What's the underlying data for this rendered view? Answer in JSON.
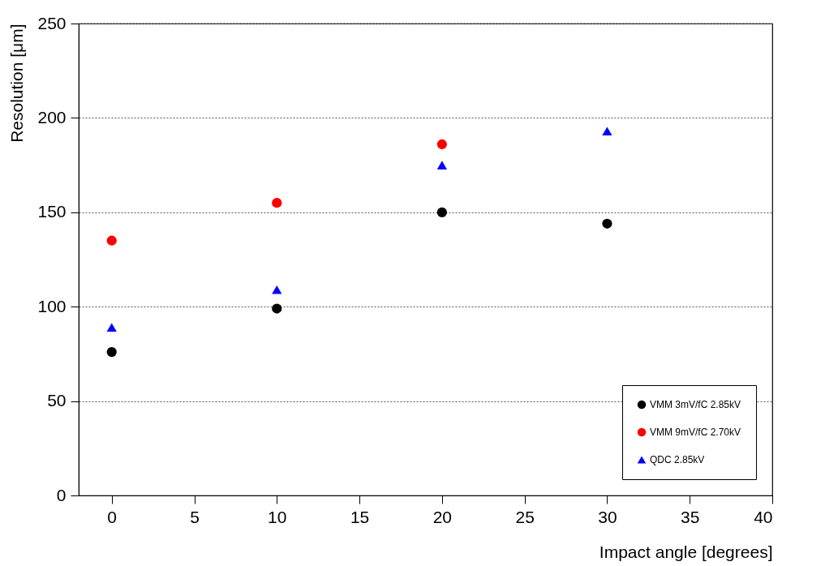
{
  "chart_data": {
    "type": "scatter",
    "xlabel": "Impact angle [degrees]",
    "ylabel": "Resolution [μm]",
    "x": [
      0,
      10,
      20,
      30
    ],
    "series": [
      {
        "name": "VMM 3mV/fC 2.85kV",
        "color": "#000000",
        "marker": "circle",
        "values": [
          76,
          99,
          150,
          144
        ]
      },
      {
        "name": "VMM 9mV/fC 2.70kV",
        "color": "#ff0000",
        "marker": "circle",
        "values": [
          135,
          155,
          186,
          null
        ]
      },
      {
        "name": "QDC 2.85kV",
        "color": "#0000ff",
        "marker": "triangle",
        "values": [
          89,
          109,
          175,
          193
        ]
      }
    ],
    "xlim": [
      -2,
      40
    ],
    "xticks": [
      0,
      5,
      10,
      15,
      20,
      25,
      30,
      35,
      40
    ],
    "ylim": [
      0,
      250
    ],
    "yticks": [
      0,
      50,
      100,
      150,
      200,
      250
    ],
    "grid": "y",
    "legend": "bottom right"
  }
}
